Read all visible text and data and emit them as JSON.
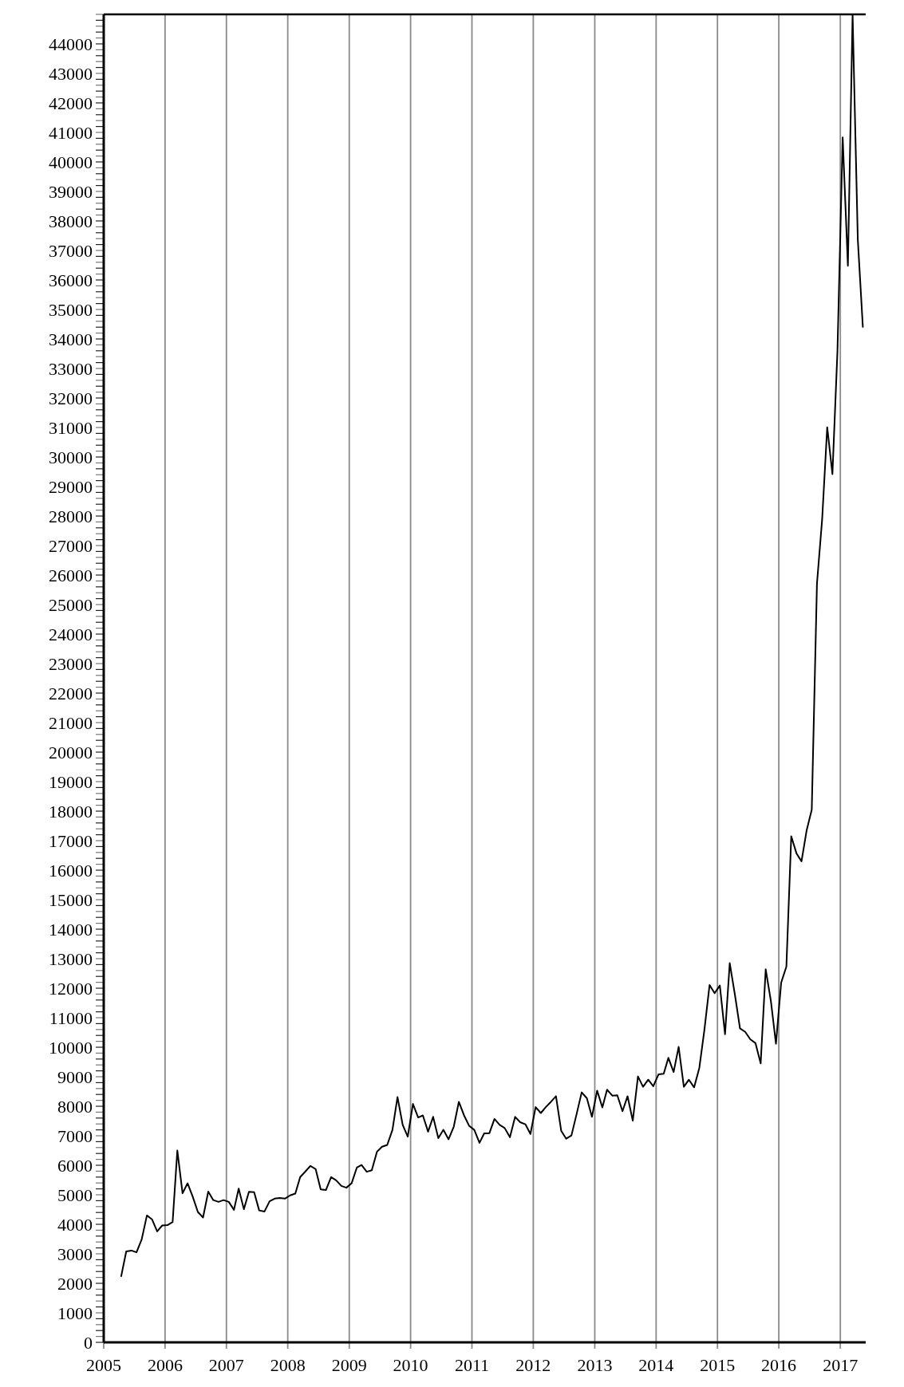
{
  "chart_data": {
    "type": "line",
    "color": "#000000",
    "grid": "x",
    "xlim": [
      "2005",
      "2017-06"
    ],
    "xticks": [
      "2005",
      "2006",
      "2007",
      "2008",
      "2009",
      "2010",
      "2011",
      "2012",
      "2013",
      "2014",
      "2015",
      "2016",
      "2017"
    ],
    "ylim": [
      0,
      45000
    ],
    "yticks": [
      0,
      {
        "value": 200,
        "label": null
      },
      {
        "value": 400,
        "label": null
      },
      {
        "value": 600,
        "label": null
      },
      {
        "value": 800,
        "label": null
      },
      1000,
      {
        "value": 1200,
        "label": null
      },
      {
        "value": 1400,
        "label": null
      },
      {
        "value": 1600,
        "label": null
      },
      {
        "value": 1800,
        "label": null
      },
      2000,
      {
        "value": 2200,
        "label": null
      },
      {
        "value": 2400,
        "label": null
      },
      {
        "value": 2600,
        "label": null
      },
      {
        "value": 2800,
        "label": null
      },
      3000,
      {
        "value": 3200,
        "label": null
      },
      {
        "value": 3400,
        "label": null
      },
      {
        "value": 3600,
        "label": null
      },
      {
        "value": 3800,
        "label": null
      },
      4000,
      {
        "value": 4200,
        "label": null
      },
      {
        "value": 4400,
        "label": null
      },
      {
        "value": 4600,
        "label": null
      },
      {
        "value": 4800,
        "label": null
      },
      5000,
      {
        "value": 5200,
        "label": null
      },
      {
        "value": 5400,
        "label": null
      },
      {
        "value": 5600,
        "label": null
      },
      {
        "value": 5800,
        "label": null
      },
      6000,
      {
        "value": 6200,
        "label": null
      },
      {
        "value": 6400,
        "label": null
      },
      {
        "value": 6600,
        "label": null
      },
      {
        "value": 6800,
        "label": null
      },
      7000,
      {
        "value": 7200,
        "label": null
      },
      {
        "value": 7400,
        "label": null
      },
      {
        "value": 7600,
        "label": null
      },
      {
        "value": 7800,
        "label": null
      },
      8000,
      {
        "value": 8200,
        "label": null
      },
      {
        "value": 8400,
        "label": null
      },
      {
        "value": 8600,
        "label": null
      },
      {
        "value": 8800,
        "label": null
      },
      9000,
      {
        "value": 9200,
        "label": null
      },
      {
        "value": 9400,
        "label": null
      },
      {
        "value": 9600,
        "label": null
      },
      {
        "value": 9800,
        "label": null
      },
      10000,
      {
        "value": 10200,
        "label": null
      },
      {
        "value": 10400,
        "label": null
      },
      {
        "value": 10600,
        "label": null
      },
      {
        "value": 10800,
        "label": null
      },
      11000,
      {
        "value": 11200,
        "label": null
      },
      {
        "value": 11400,
        "label": null
      },
      {
        "value": 11600,
        "label": null
      },
      {
        "value": 11800,
        "label": null
      },
      12000,
      {
        "value": 12200,
        "label": null
      },
      {
        "value": 12400,
        "label": null
      },
      {
        "value": 12600,
        "label": null
      },
      {
        "value": 12800,
        "label": null
      },
      13000,
      {
        "value": 13200,
        "label": null
      },
      {
        "value": 13400,
        "label": null
      },
      {
        "value": 13600,
        "label": null
      },
      {
        "value": 13800,
        "label": null
      },
      14000,
      {
        "value": 14200,
        "label": null
      },
      {
        "value": 14400,
        "label": null
      },
      {
        "value": 14600,
        "label": null
      },
      {
        "value": 14800,
        "label": null
      },
      15000,
      {
        "value": 15200,
        "label": null
      },
      {
        "value": 15400,
        "label": null
      },
      {
        "value": 15600,
        "label": null
      },
      {
        "value": 15800,
        "label": null
      },
      16000,
      {
        "value": 16200,
        "label": null
      },
      {
        "value": 16400,
        "label": null
      },
      {
        "value": 16600,
        "label": null
      },
      {
        "value": 16800,
        "label": null
      },
      17000,
      {
        "value": 17200,
        "label": null
      },
      {
        "value": 17400,
        "label": null
      },
      {
        "value": 17600,
        "label": null
      },
      {
        "value": 17800,
        "label": null
      },
      18000,
      {
        "value": 18200,
        "label": null
      },
      {
        "value": 18400,
        "label": null
      },
      {
        "value": 18600,
        "label": null
      },
      {
        "value": 18800,
        "label": null
      },
      19000,
      {
        "value": 19200,
        "label": null
      },
      {
        "value": 19400,
        "label": null
      },
      {
        "value": 19600,
        "label": null
      },
      {
        "value": 19800,
        "label": null
      },
      20000,
      {
        "value": 20200,
        "label": null
      },
      {
        "value": 20400,
        "label": null
      },
      {
        "value": 20600,
        "label": null
      },
      {
        "value": 20800,
        "label": null
      },
      21000,
      {
        "value": 21200,
        "label": null
      },
      {
        "value": 21400,
        "label": null
      },
      {
        "value": 21600,
        "label": null
      },
      {
        "value": 21800,
        "label": null
      },
      22000,
      {
        "value": 22200,
        "label": null
      },
      {
        "value": 22400,
        "label": null
      },
      {
        "value": 22600,
        "label": null
      },
      {
        "value": 22800,
        "label": null
      },
      23000,
      {
        "value": 23200,
        "label": null
      },
      {
        "value": 23400,
        "label": null
      },
      {
        "value": 23600,
        "label": null
      },
      {
        "value": 23800,
        "label": null
      },
      24000,
      {
        "value": 24200,
        "label": null
      },
      {
        "value": 24400,
        "label": null
      },
      {
        "value": 24600,
        "label": null
      },
      {
        "value": 24800,
        "label": null
      },
      25000,
      {
        "value": 25200,
        "label": null
      },
      {
        "value": 25400,
        "label": null
      },
      {
        "value": 25600,
        "label": null
      },
      {
        "value": 25800,
        "label": null
      },
      26000,
      {
        "value": 26200,
        "label": null
      },
      {
        "value": 26400,
        "label": null
      },
      {
        "value": 26600,
        "label": null
      },
      {
        "value": 26800,
        "label": null
      },
      27000,
      {
        "value": 27200,
        "label": null
      },
      {
        "value": 27400,
        "label": null
      },
      {
        "value": 27600,
        "label": null
      },
      {
        "value": 27800,
        "label": null
      },
      28000,
      {
        "value": 28200,
        "label": null
      },
      {
        "value": 28400,
        "label": null
      },
      {
        "value": 28600,
        "label": null
      },
      {
        "value": 28800,
        "label": null
      },
      29000,
      {
        "value": 29200,
        "label": null
      },
      {
        "value": 29400,
        "label": null
      },
      {
        "value": 29600,
        "label": null
      },
      {
        "value": 29800,
        "label": null
      },
      30000,
      {
        "value": 30200,
        "label": null
      },
      {
        "value": 30400,
        "label": null
      },
      {
        "value": 30600,
        "label": null
      },
      {
        "value": 30800,
        "label": null
      },
      31000,
      {
        "value": 31200,
        "label": null
      },
      {
        "value": 31400,
        "label": null
      },
      {
        "value": 31600,
        "label": null
      },
      {
        "value": 31800,
        "label": null
      },
      32000,
      {
        "value": 32200,
        "label": null
      },
      {
        "value": 32400,
        "label": null
      },
      {
        "value": 32600,
        "label": null
      },
      {
        "value": 32800,
        "label": null
      },
      33000,
      {
        "value": 33200,
        "label": null
      },
      {
        "value": 33400,
        "label": null
      },
      {
        "value": 33600,
        "label": null
      },
      {
        "value": 33800,
        "label": null
      },
      34000,
      {
        "value": 34200,
        "label": null
      },
      {
        "value": 34400,
        "label": null
      },
      {
        "value": 34600,
        "label": null
      },
      {
        "value": 34800,
        "label": null
      },
      35000,
      {
        "value": 35200,
        "label": null
      },
      {
        "value": 35400,
        "label": null
      },
      {
        "value": 35600,
        "label": null
      },
      {
        "value": 35800,
        "label": null
      },
      36000,
      {
        "value": 36200,
        "label": null
      },
      {
        "value": 36400,
        "label": null
      },
      {
        "value": 36600,
        "label": null
      },
      {
        "value": 36800,
        "label": null
      },
      37000,
      {
        "value": 37200,
        "label": null
      },
      {
        "value": 37400,
        "label": null
      },
      {
        "value": 37600,
        "label": null
      },
      {
        "value": 37800,
        "label": null
      },
      38000,
      {
        "value": 38200,
        "label": null
      },
      {
        "value": 38400,
        "label": null
      },
      {
        "value": 38600,
        "label": null
      },
      {
        "value": 38800,
        "label": null
      },
      39000,
      {
        "value": 39200,
        "label": null
      },
      {
        "value": 39400,
        "label": null
      },
      {
        "value": 39600,
        "label": null
      },
      {
        "value": 39800,
        "label": null
      },
      40000,
      {
        "value": 40200,
        "label": null
      },
      {
        "value": 40400,
        "label": null
      },
      {
        "value": 40600,
        "label": null
      },
      {
        "value": 40800,
        "label": null
      },
      41000,
      {
        "value": 41200,
        "label": null
      },
      {
        "value": 41400,
        "label": null
      },
      {
        "value": 41600,
        "label": null
      },
      {
        "value": 41800,
        "label": null
      },
      42000,
      {
        "value": 42200,
        "label": null
      },
      {
        "value": 42400,
        "label": null
      },
      {
        "value": 42600,
        "label": null
      },
      {
        "value": 42800,
        "label": null
      },
      43000,
      {
        "value": 43200,
        "label": null
      },
      {
        "value": 43400,
        "label": null
      },
      {
        "value": 43600,
        "label": null
      },
      {
        "value": 43800,
        "label": null
      },
      44000,
      {
        "value": 44200,
        "label": null
      },
      {
        "value": 44400,
        "label": null
      },
      {
        "value": 44600,
        "label": null
      },
      {
        "value": 44800,
        "label": null
      },
      {
        "value": 45000,
        "label": null
      }
    ],
    "x": [
      "2005-04-15",
      "2005-05-15",
      "2005-06-15",
      "2005-07-15",
      "2005-08-15",
      "2005-09-15",
      "2005-10-15",
      "2005-11-15",
      "2005-12-15",
      "2006-01-15",
      "2006-02-15",
      "2006-03-15",
      "2006-04-15",
      "2006-05-15",
      "2006-06-15",
      "2006-07-15",
      "2006-08-15",
      "2006-09-15",
      "2006-10-15",
      "2006-11-15",
      "2006-12-15",
      "2007-01-15",
      "2007-02-15",
      "2007-03-15",
      "2007-04-15",
      "2007-05-15",
      "2007-06-15",
      "2007-07-15",
      "2007-08-15",
      "2007-09-15",
      "2007-10-15",
      "2007-11-15",
      "2007-12-15",
      "2008-01-15",
      "2008-02-15",
      "2008-03-15",
      "2008-04-15",
      "2008-05-15",
      "2008-06-15",
      "2008-07-15",
      "2008-08-15",
      "2008-09-15",
      "2008-10-15",
      "2008-11-15",
      "2008-12-15",
      "2009-01-15",
      "2009-02-15",
      "2009-03-15",
      "2009-04-15",
      "2009-05-15",
      "2009-06-15",
      "2009-07-15",
      "2009-08-15",
      "2009-09-15",
      "2009-10-15",
      "2009-11-15",
      "2009-12-15",
      "2010-01-15",
      "2010-02-15",
      "2010-03-15",
      "2010-04-15",
      "2010-05-15",
      "2010-06-15",
      "2010-07-15",
      "2010-08-15",
      "2010-09-15",
      "2010-10-15",
      "2010-11-15",
      "2010-12-15",
      "2011-01-15",
      "2011-02-15",
      "2011-03-15",
      "2011-04-15",
      "2011-05-15",
      "2011-06-15",
      "2011-07-15",
      "2011-08-15",
      "2011-09-15",
      "2011-10-15",
      "2011-11-15",
      "2011-12-15",
      "2012-01-15",
      "2012-02-15",
      "2012-03-15",
      "2012-04-15",
      "2012-05-15",
      "2012-06-15",
      "2012-07-15",
      "2012-08-15",
      "2012-09-15",
      "2012-10-15",
      "2012-11-15",
      "2012-12-15",
      "2013-01-15",
      "2013-02-15",
      "2013-03-15",
      "2013-04-15",
      "2013-05-15",
      "2013-06-15",
      "2013-07-15",
      "2013-08-15",
      "2013-09-15",
      "2013-10-15",
      "2013-11-15",
      "2013-12-15",
      "2014-01-15",
      "2014-02-15",
      "2014-03-15",
      "2014-04-15",
      "2014-05-15",
      "2014-06-15",
      "2014-07-15",
      "2014-08-15",
      "2014-09-15",
      "2014-10-15",
      "2014-11-15",
      "2014-12-15",
      "2015-01-15",
      "2015-02-15",
      "2015-03-15",
      "2015-04-15",
      "2015-05-15",
      "2015-06-15",
      "2015-07-15",
      "2015-08-15",
      "2015-09-15",
      "2015-10-15",
      "2015-11-15",
      "2015-12-15",
      "2016-01-15",
      "2016-02-15",
      "2016-03-15",
      "2016-04-15",
      "2016-05-15",
      "2016-06-15",
      "2016-07-15",
      "2016-08-15",
      "2016-09-15",
      "2016-10-15",
      "2016-11-15",
      "2016-12-15",
      "2017-01-15",
      "2017-02-15",
      "2017-03-15",
      "2017-04-15",
      "2017-05-15"
    ],
    "values": [
      2240,
      3080,
      3110,
      3050,
      3490,
      4300,
      4170,
      3760,
      3960,
      3970,
      4080,
      6500,
      5050,
      5390,
      4930,
      4420,
      4230,
      5110,
      4820,
      4760,
      4820,
      4760,
      4490,
      5210,
      4510,
      5100,
      5090,
      4470,
      4430,
      4780,
      4870,
      4890,
      4870,
      4980,
      5040,
      5600,
      5790,
      5980,
      5870,
      5180,
      5160,
      5600,
      5490,
      5300,
      5240,
      5390,
      5920,
      6010,
      5780,
      5830,
      6460,
      6630,
      6690,
      7200,
      8310,
      7370,
      6970,
      8080,
      7620,
      7690,
      7140,
      7640,
      6920,
      7200,
      6880,
      7310,
      8150,
      7690,
      7340,
      7200,
      6760,
      7080,
      7090,
      7570,
      7370,
      7260,
      6950,
      7640,
      7460,
      7390,
      7060,
      7970,
      7770,
      7970,
      8150,
      8340,
      7170,
      6900,
      7010,
      7740,
      8470,
      8270,
      7640,
      8530,
      7960,
      8560,
      8360,
      8370,
      7830,
      8340,
      7510,
      9010,
      8660,
      8900,
      8680,
      9080,
      9100,
      9640,
      9160,
      10010,
      8660,
      8900,
      8640,
      9300,
      10580,
      12110,
      11830,
      12090,
      10440,
      12850,
      11770,
      10640,
      10520,
      10270,
      10140,
      9450,
      12640,
      11560,
      10120,
      12190,
      12730,
      17150,
      16570,
      16300,
      17360,
      18050,
      25710,
      27900,
      31010,
      29420,
      33600,
      40830,
      36480,
      45000,
      37370,
      34410
    ]
  }
}
